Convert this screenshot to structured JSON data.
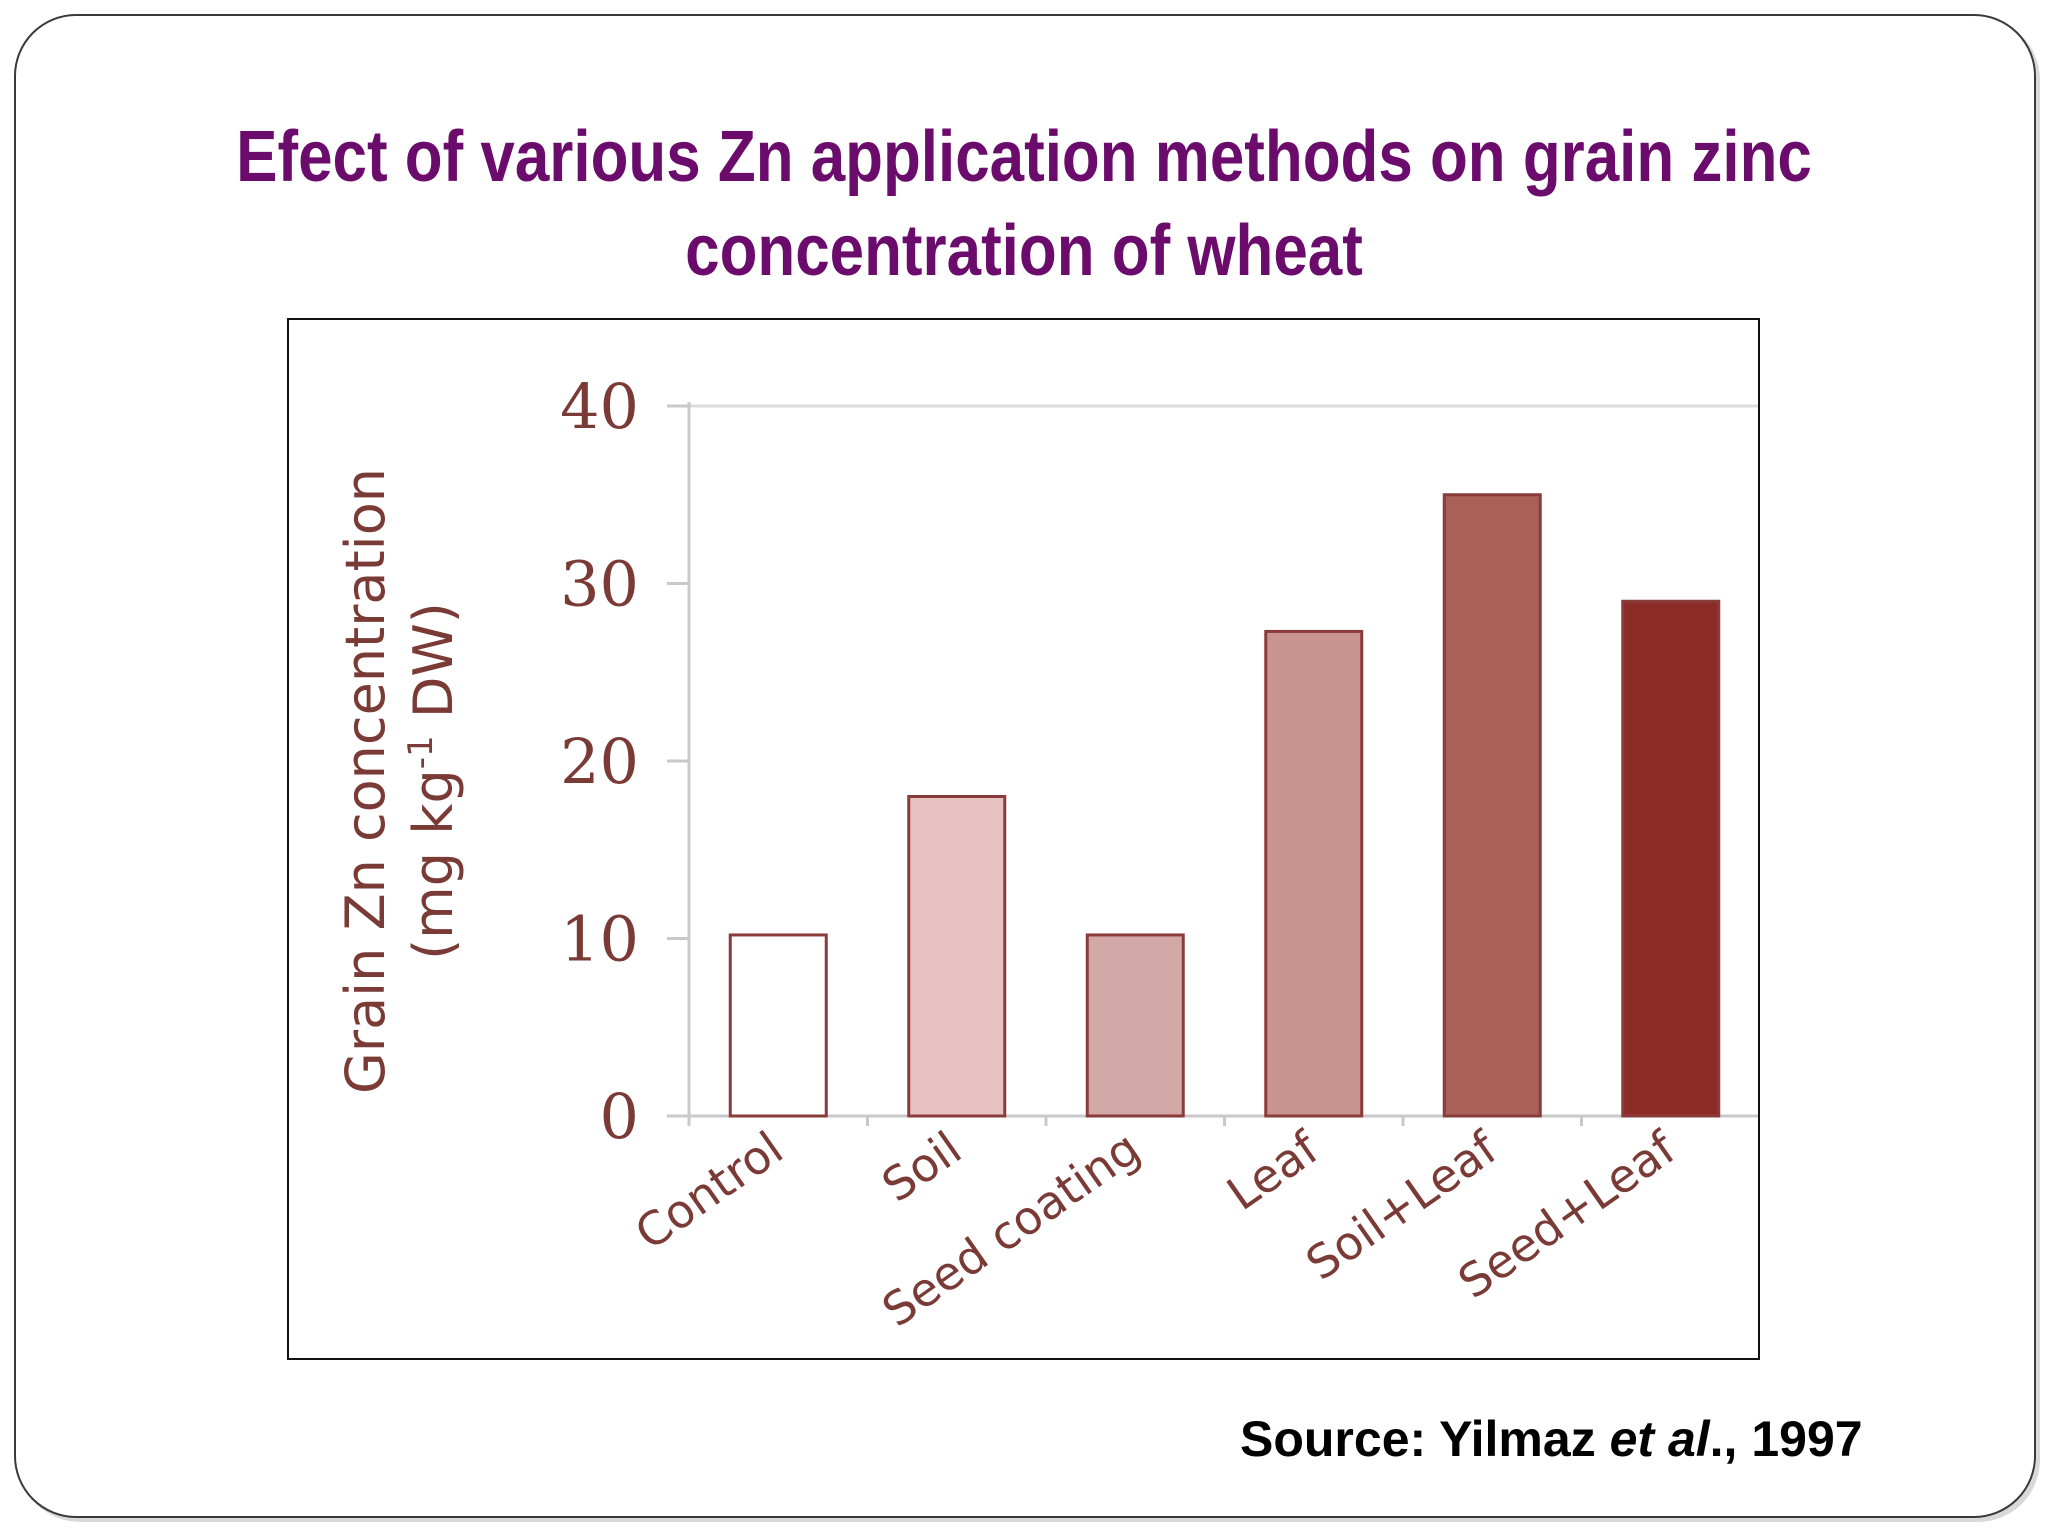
{
  "slide": {
    "title_line1": "Efect of various Zn application methods on grain zinc",
    "title_line2": "concentration of wheat",
    "source_prefix": "Source: Yilmaz ",
    "source_italic": "et al",
    "source_suffix": "., 1997"
  },
  "chart_data": {
    "type": "bar",
    "title": "",
    "categories": [
      "Control",
      "Soil",
      "Seed coating",
      "Leaf",
      "Soil+Leaf",
      "Seed+Leaf"
    ],
    "values": [
      10.2,
      18,
      10.2,
      27.3,
      35,
      29
    ],
    "ylabel_line1": "Grain Zn concentration",
    "ylabel_line2_pre": "(mg kg",
    "ylabel_line2_sup": "-1",
    "ylabel_line2_post": "   DW)",
    "ylim": [
      0,
      40
    ],
    "yticks": [
      0,
      10,
      20,
      30,
      40
    ],
    "grid": false,
    "colors": {
      "bar_fills": [
        "#ffffff",
        "#e6c3c2",
        "#d2a9a6",
        "#c9948f",
        "#a86058",
        "#8c2c27"
      ],
      "bar_stroke": "#8a3c3a",
      "axis": "#c9c9c9",
      "text": "#7a3a36"
    }
  }
}
